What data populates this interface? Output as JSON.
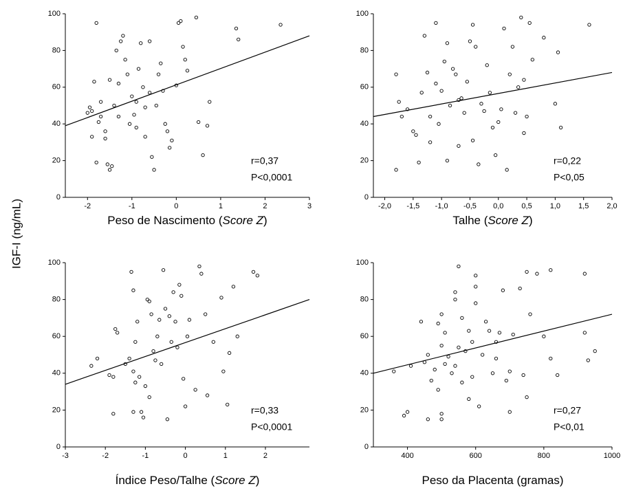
{
  "ylabel": "IGF-I (ng/mL)",
  "chart_data": [
    {
      "type": "scatter",
      "xlabel": [
        "Peso de Nascimento (",
        "Score Z",
        ")"
      ],
      "xlim": [
        -2.5,
        3
      ],
      "xticks": [
        -2,
        -1,
        0,
        1,
        2,
        3
      ],
      "ylim": [
        0,
        100
      ],
      "yticks": [
        0,
        20,
        40,
        60,
        80,
        100
      ],
      "color": "#000000",
      "annotations": [
        "r=0,37",
        "P<0,0001"
      ],
      "fit": {
        "x": [
          -2.5,
          3
        ],
        "values": [
          39,
          88
        ]
      },
      "x": [
        -1.8,
        -1.9,
        -1.9,
        -1.8,
        -1.85,
        -1.7,
        -1.7,
        -1.6,
        -1.6,
        -1.55,
        -1.5,
        -1.45,
        -1.5,
        -1.4,
        -1.35,
        -1.3,
        -1.25,
        -1.2,
        -1.15,
        -1.1,
        -1.05,
        -1.0,
        -0.95,
        -0.9,
        -0.85,
        -0.8,
        -0.75,
        -0.7,
        -0.6,
        -0.6,
        -0.55,
        -0.5,
        -0.45,
        -0.4,
        -0.35,
        -0.3,
        -0.25,
        -0.2,
        -0.15,
        -0.1,
        0,
        0.05,
        0.1,
        0.15,
        0.2,
        0.25,
        0.45,
        0.5,
        0.6,
        0.7,
        0.75,
        1.35,
        1.4,
        2.35,
        -2.0,
        -1.95,
        -1.75,
        -1.3,
        -0.9,
        -0.7
      ],
      "values": [
        95,
        47,
        33,
        19,
        63,
        52,
        44,
        36,
        32,
        18,
        15,
        17,
        64,
        50,
        80,
        62,
        85,
        88,
        75,
        67,
        40,
        55,
        45,
        38,
        70,
        84,
        60,
        49,
        85,
        57,
        22,
        15,
        50,
        67,
        73,
        58,
        40,
        36,
        27,
        31,
        61,
        95,
        96,
        82,
        75,
        69,
        98,
        41,
        23,
        39,
        52,
        92,
        86,
        94,
        46,
        49,
        41,
        44,
        52,
        33
      ]
    },
    {
      "type": "scatter",
      "xlabel": [
        "Talhe (",
        "Score Z",
        ")"
      ],
      "xlim": [
        -2.2,
        2.0
      ],
      "xticks": [
        {
          "value": -2,
          "label": "-2,0"
        },
        {
          "value": -1.5,
          "label": "-1,5"
        },
        {
          "value": -1,
          "label": "-1,0"
        },
        {
          "value": -0.5,
          "label": "-0,5"
        },
        {
          "value": 0,
          "label": "0,0"
        },
        {
          "value": 0.5,
          "label": "0,5"
        },
        {
          "value": 1,
          "label": "1,0"
        },
        {
          "value": 1.5,
          "label": "1,5"
        },
        {
          "value": 2,
          "label": "2,0"
        }
      ],
      "ylim": [
        0,
        100
      ],
      "yticks": [
        0,
        20,
        40,
        60,
        80,
        100
      ],
      "color": "#000000",
      "annotations": [
        "r=0,22",
        "P<0,05"
      ],
      "fit": {
        "x": [
          -2.2,
          2.0
        ],
        "values": [
          44,
          68
        ]
      },
      "x": [
        -1.8,
        -1.8,
        -1.75,
        -1.7,
        -1.6,
        -1.5,
        -1.45,
        -1.4,
        -1.35,
        -1.3,
        -1.25,
        -1.2,
        -1.1,
        -1.1,
        -1.05,
        -1.0,
        -0.95,
        -0.9,
        -0.9,
        -0.85,
        -0.8,
        -0.75,
        -0.7,
        -0.65,
        -0.6,
        -0.55,
        -0.5,
        -0.45,
        -0.45,
        -0.4,
        -0.35,
        -0.3,
        -0.25,
        -0.2,
        -0.15,
        -0.1,
        -0.05,
        0,
        0.05,
        0.1,
        0.15,
        0.2,
        0.25,
        0.3,
        0.35,
        0.4,
        0.45,
        0.5,
        0.55,
        0.6,
        0.8,
        1.0,
        1.05,
        1.1,
        1.6,
        -1.2,
        -0.7,
        0.45
      ],
      "values": [
        67,
        15,
        52,
        44,
        48,
        36,
        34,
        19,
        57,
        88,
        68,
        44,
        95,
        62,
        40,
        58,
        74,
        84,
        20,
        50,
        70,
        67,
        28,
        54,
        46,
        63,
        85,
        94,
        31,
        82,
        18,
        51,
        47,
        72,
        57,
        38,
        23,
        41,
        48,
        92,
        15,
        67,
        82,
        46,
        60,
        98,
        64,
        44,
        95,
        75,
        87,
        51,
        79,
        38,
        94,
        30,
        53,
        35
      ]
    },
    {
      "type": "scatter",
      "xlabel": [
        "Índice Peso/Talhe (",
        "Score Z",
        ")"
      ],
      "xlim": [
        -3,
        3.1
      ],
      "xticks": [
        -3,
        -2,
        -1,
        0,
        1,
        2
      ],
      "ylim": [
        0,
        100
      ],
      "yticks": [
        0,
        20,
        40,
        60,
        80,
        100
      ],
      "color": "#000000",
      "annotations": [
        "r=0,33",
        "P<0,0001"
      ],
      "fit": {
        "x": [
          -3,
          3.1
        ],
        "values": [
          34,
          80
        ]
      },
      "x": [
        -2.35,
        -2.2,
        -1.9,
        -1.8,
        -1.8,
        -1.75,
        -1.7,
        -1.5,
        -1.4,
        -1.35,
        -1.3,
        -1.3,
        -1.25,
        -1.2,
        -1.15,
        -1.1,
        -1.05,
        -1.0,
        -0.95,
        -0.9,
        -0.85,
        -0.8,
        -0.75,
        -0.7,
        -0.65,
        -0.55,
        -0.5,
        -0.45,
        -0.4,
        -0.35,
        -0.3,
        -0.25,
        -0.2,
        -0.15,
        -0.1,
        -0.05,
        0,
        0.05,
        0.1,
        0.25,
        0.35,
        0.4,
        0.5,
        0.55,
        0.7,
        0.9,
        0.95,
        1.05,
        1.2,
        1.3,
        1.1,
        1.7,
        1.8,
        -1.3,
        -0.9,
        -0.6,
        -1.25
      ],
      "values": [
        44,
        48,
        39,
        38,
        18,
        64,
        62,
        45,
        48,
        95,
        85,
        19,
        57,
        68,
        38,
        19,
        16,
        33,
        80,
        79,
        72,
        52,
        47,
        60,
        69,
        96,
        75,
        15,
        71,
        57,
        84,
        68,
        54,
        88,
        82,
        37,
        22,
        60,
        69,
        31,
        98,
        94,
        72,
        28,
        57,
        81,
        41,
        23,
        87,
        60,
        51,
        95,
        93,
        41,
        27,
        45,
        35
      ]
    },
    {
      "type": "scatter",
      "xlabel": [
        "Peso da Placenta (gramas)"
      ],
      "xlim": [
        300,
        1000
      ],
      "xticks": [
        400,
        600,
        800,
        1000
      ],
      "ylim": [
        0,
        100
      ],
      "yticks": [
        0,
        20,
        40,
        60,
        80,
        100
      ],
      "color": "#000000",
      "annotations": [
        "r=0,27",
        "P<0,01"
      ],
      "fit": {
        "x": [
          300,
          1000
        ],
        "values": [
          40,
          72
        ]
      },
      "x": [
        360,
        390,
        400,
        410,
        440,
        450,
        460,
        460,
        480,
        490,
        490,
        500,
        500,
        500,
        500,
        510,
        510,
        520,
        530,
        540,
        540,
        550,
        550,
        560,
        560,
        570,
        580,
        590,
        590,
        600,
        600,
        600,
        610,
        620,
        630,
        640,
        650,
        660,
        660,
        670,
        680,
        690,
        700,
        700,
        710,
        730,
        740,
        750,
        750,
        760,
        780,
        800,
        820,
        820,
        840,
        920,
        920,
        930,
        950,
        470,
        540,
        580
      ],
      "values": [
        41,
        17,
        19,
        44,
        68,
        46,
        50,
        15,
        42,
        67,
        31,
        72,
        55,
        18,
        15,
        62,
        45,
        49,
        40,
        80,
        84,
        98,
        54,
        70,
        35,
        52,
        63,
        57,
        38,
        93,
        87,
        78,
        22,
        50,
        68,
        63,
        40,
        57,
        48,
        62,
        85,
        36,
        41,
        19,
        61,
        86,
        39,
        27,
        95,
        72,
        94,
        60,
        96,
        48,
        39,
        94,
        62,
        47,
        52,
        36,
        44,
        26
      ]
    }
  ]
}
